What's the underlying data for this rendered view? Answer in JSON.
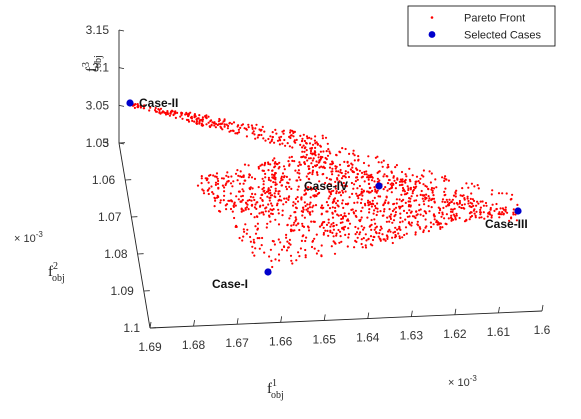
{
  "chart_data": {
    "type": "scatter",
    "series": [
      {
        "name": "Pareto Front",
        "color": "#ff0000",
        "marker": "dot"
      },
      {
        "name": "Selected Cases",
        "color": "#0000cc",
        "marker": "circle",
        "points": [
          {
            "label": "Case-I",
            "f1": 1.669,
            "f2": 1.08,
            "f3": 3.0
          },
          {
            "label": "Case-II",
            "f1": 1.69,
            "f2": 1.05,
            "f3": 3.067
          },
          {
            "label": "Case-III",
            "f1": 1.61,
            "f2": 1.056,
            "f3": 3.0
          },
          {
            "label": "Case-IV",
            "f1": 1.642,
            "f2": 1.054,
            "f3": 3.0
          }
        ]
      }
    ],
    "axes": {
      "f1": {
        "label_base": "f",
        "label_sup": "1",
        "label_sub": "obj",
        "range": [
          1.6,
          1.69
        ],
        "ticks": [
          "1.69",
          "1.68",
          "1.67",
          "1.66",
          "1.65",
          "1.64",
          "1.63",
          "1.62",
          "1.61",
          "1.6"
        ],
        "multiplier": {
          "base": "× 10",
          "exp": "-3"
        }
      },
      "f2": {
        "label_base": "f",
        "label_sup": "2",
        "label_sub": "obj",
        "range": [
          1.05,
          1.1
        ],
        "ticks": [
          "1.05",
          "1.06",
          "1.07",
          "1.08",
          "1.09",
          "1.1"
        ],
        "multiplier": {
          "base": "× 10",
          "exp": "-3"
        }
      },
      "f3": {
        "label_base": "f",
        "label_sup": "3",
        "label_sub": "obj",
        "range": [
          3,
          3.15
        ],
        "ticks": [
          "3",
          "3.05",
          "3.1",
          "3.15"
        ]
      }
    },
    "legend_position": "top-right",
    "grid": false
  }
}
